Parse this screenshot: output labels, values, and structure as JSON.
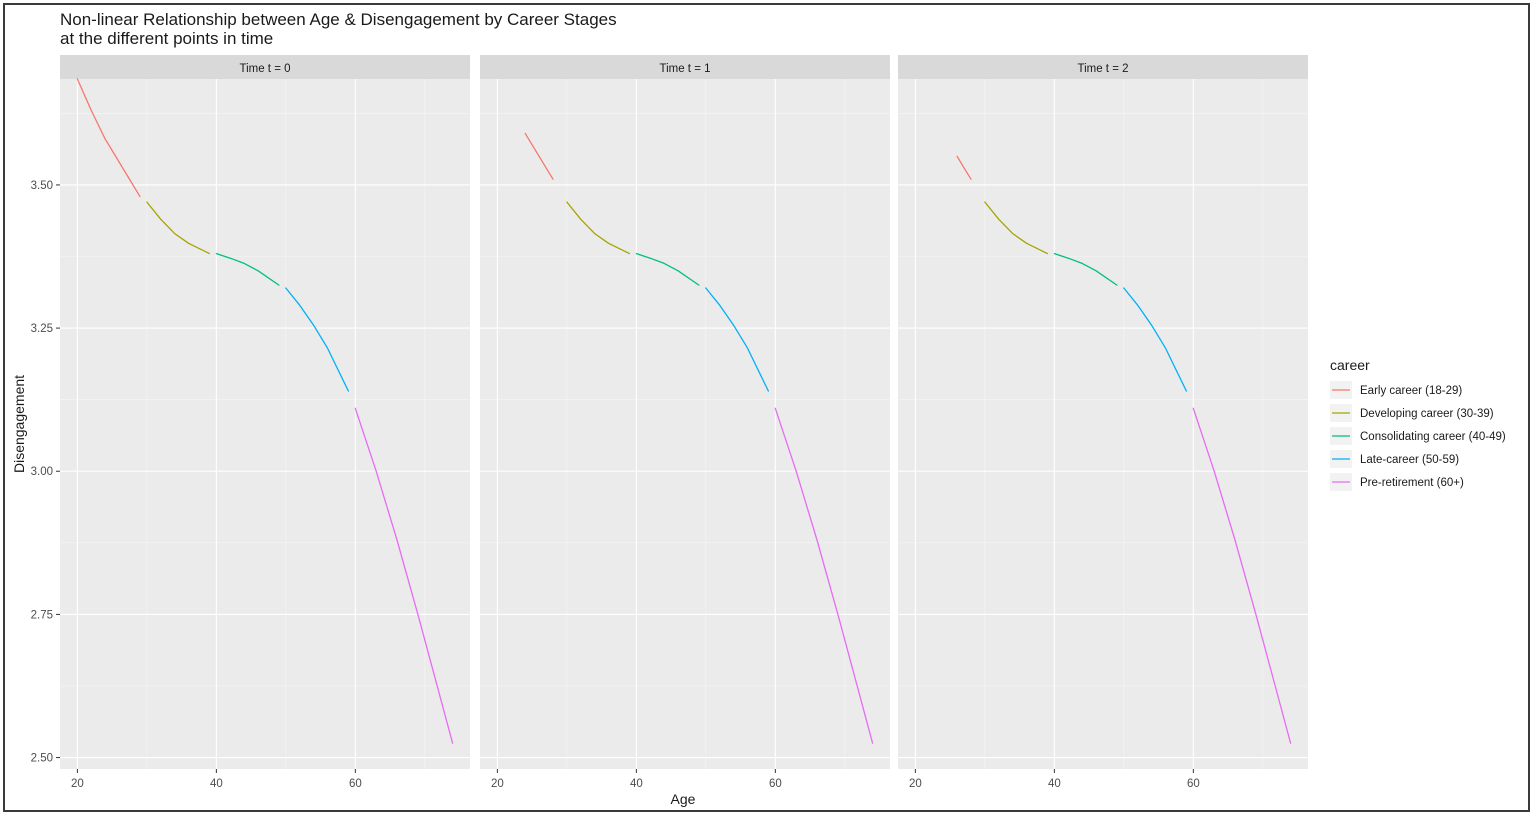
{
  "chart_data": {
    "type": "line",
    "title": "Non-linear Relationship between Age & Disengagement by Career Stages",
    "subtitle": "at the different points in time",
    "xlabel": "Age",
    "ylabel": "Disengagement",
    "xlim": [
      17.5,
      76.5
    ],
    "ylim": [
      2.48,
      3.685
    ],
    "x_ticks": [
      20,
      40,
      60
    ],
    "y_ticks": [
      2.5,
      2.75,
      3.0,
      3.25,
      3.5
    ],
    "y_tick_labels": [
      "2.50",
      "2.75",
      "3.00",
      "3.25",
      "3.50"
    ],
    "grid": true,
    "legend_position": "right",
    "legend_title": "career",
    "series": [
      {
        "name": "Early career (18-29)",
        "color": "#F8766D"
      },
      {
        "name": "Developing career (30-39)",
        "color": "#A3A500"
      },
      {
        "name": "Consolidating career (40-49)",
        "color": "#00BF7D"
      },
      {
        "name": "Late-career (50-59)",
        "color": "#00B0F6"
      },
      {
        "name": "Pre-retirement (60+)",
        "color": "#E76BF3"
      }
    ],
    "panels": [
      {
        "strip": "Time t = 0",
        "lines": [
          {
            "series": 0,
            "x": [
              20,
              22,
              24,
              26,
              29
            ],
            "y": [
              3.685,
              3.63,
              3.58,
              3.54,
              3.48
            ]
          },
          {
            "series": 1,
            "x": [
              30,
              32,
              34,
              36,
              39
            ],
            "y": [
              3.47,
              3.44,
              3.415,
              3.398,
              3.38
            ]
          },
          {
            "series": 2,
            "x": [
              40,
              42,
              44,
              46,
              49
            ],
            "y": [
              3.38,
              3.372,
              3.363,
              3.35,
              3.325
            ]
          },
          {
            "series": 3,
            "x": [
              50,
              52,
              54,
              56,
              59
            ],
            "y": [
              3.32,
              3.29,
              3.255,
              3.215,
              3.14
            ]
          },
          {
            "series": 4,
            "x": [
              60,
              63,
              66,
              69,
              71,
              74
            ],
            "y": [
              3.11,
              3.0,
              2.88,
              2.75,
              2.66,
              2.525
            ]
          }
        ]
      },
      {
        "strip": "Time t = 1",
        "lines": [
          {
            "series": 0,
            "x": [
              24,
              26,
              28
            ],
            "y": [
              3.59,
              3.55,
              3.51
            ]
          },
          {
            "series": 1,
            "x": [
              30,
              32,
              34,
              36,
              39
            ],
            "y": [
              3.47,
              3.44,
              3.415,
              3.398,
              3.38
            ]
          },
          {
            "series": 2,
            "x": [
              40,
              42,
              44,
              46,
              49
            ],
            "y": [
              3.38,
              3.372,
              3.363,
              3.35,
              3.325
            ]
          },
          {
            "series": 3,
            "x": [
              50,
              52,
              54,
              56,
              59
            ],
            "y": [
              3.32,
              3.29,
              3.255,
              3.215,
              3.14
            ]
          },
          {
            "series": 4,
            "x": [
              60,
              63,
              66,
              69,
              71,
              74
            ],
            "y": [
              3.11,
              3.0,
              2.88,
              2.75,
              2.66,
              2.525
            ]
          }
        ]
      },
      {
        "strip": "Time t = 2",
        "lines": [
          {
            "series": 0,
            "x": [
              26,
              27,
              28
            ],
            "y": [
              3.55,
              3.53,
              3.51
            ]
          },
          {
            "series": 1,
            "x": [
              30,
              32,
              34,
              36,
              39
            ],
            "y": [
              3.47,
              3.44,
              3.415,
              3.398,
              3.38
            ]
          },
          {
            "series": 2,
            "x": [
              40,
              42,
              44,
              46,
              49
            ],
            "y": [
              3.38,
              3.372,
              3.363,
              3.35,
              3.325
            ]
          },
          {
            "series": 3,
            "x": [
              50,
              52,
              54,
              56,
              59
            ],
            "y": [
              3.32,
              3.29,
              3.255,
              3.215,
              3.14
            ]
          },
          {
            "series": 4,
            "x": [
              60,
              63,
              66,
              69,
              71,
              74
            ],
            "y": [
              3.11,
              3.0,
              2.88,
              2.75,
              2.66,
              2.525
            ]
          }
        ]
      }
    ]
  },
  "colors": {
    "panel_background": "#EBEBEB",
    "strip_background": "#D9D9D9",
    "grid_major": "#FFFFFF",
    "grid_minor": "#F5F5F5"
  }
}
